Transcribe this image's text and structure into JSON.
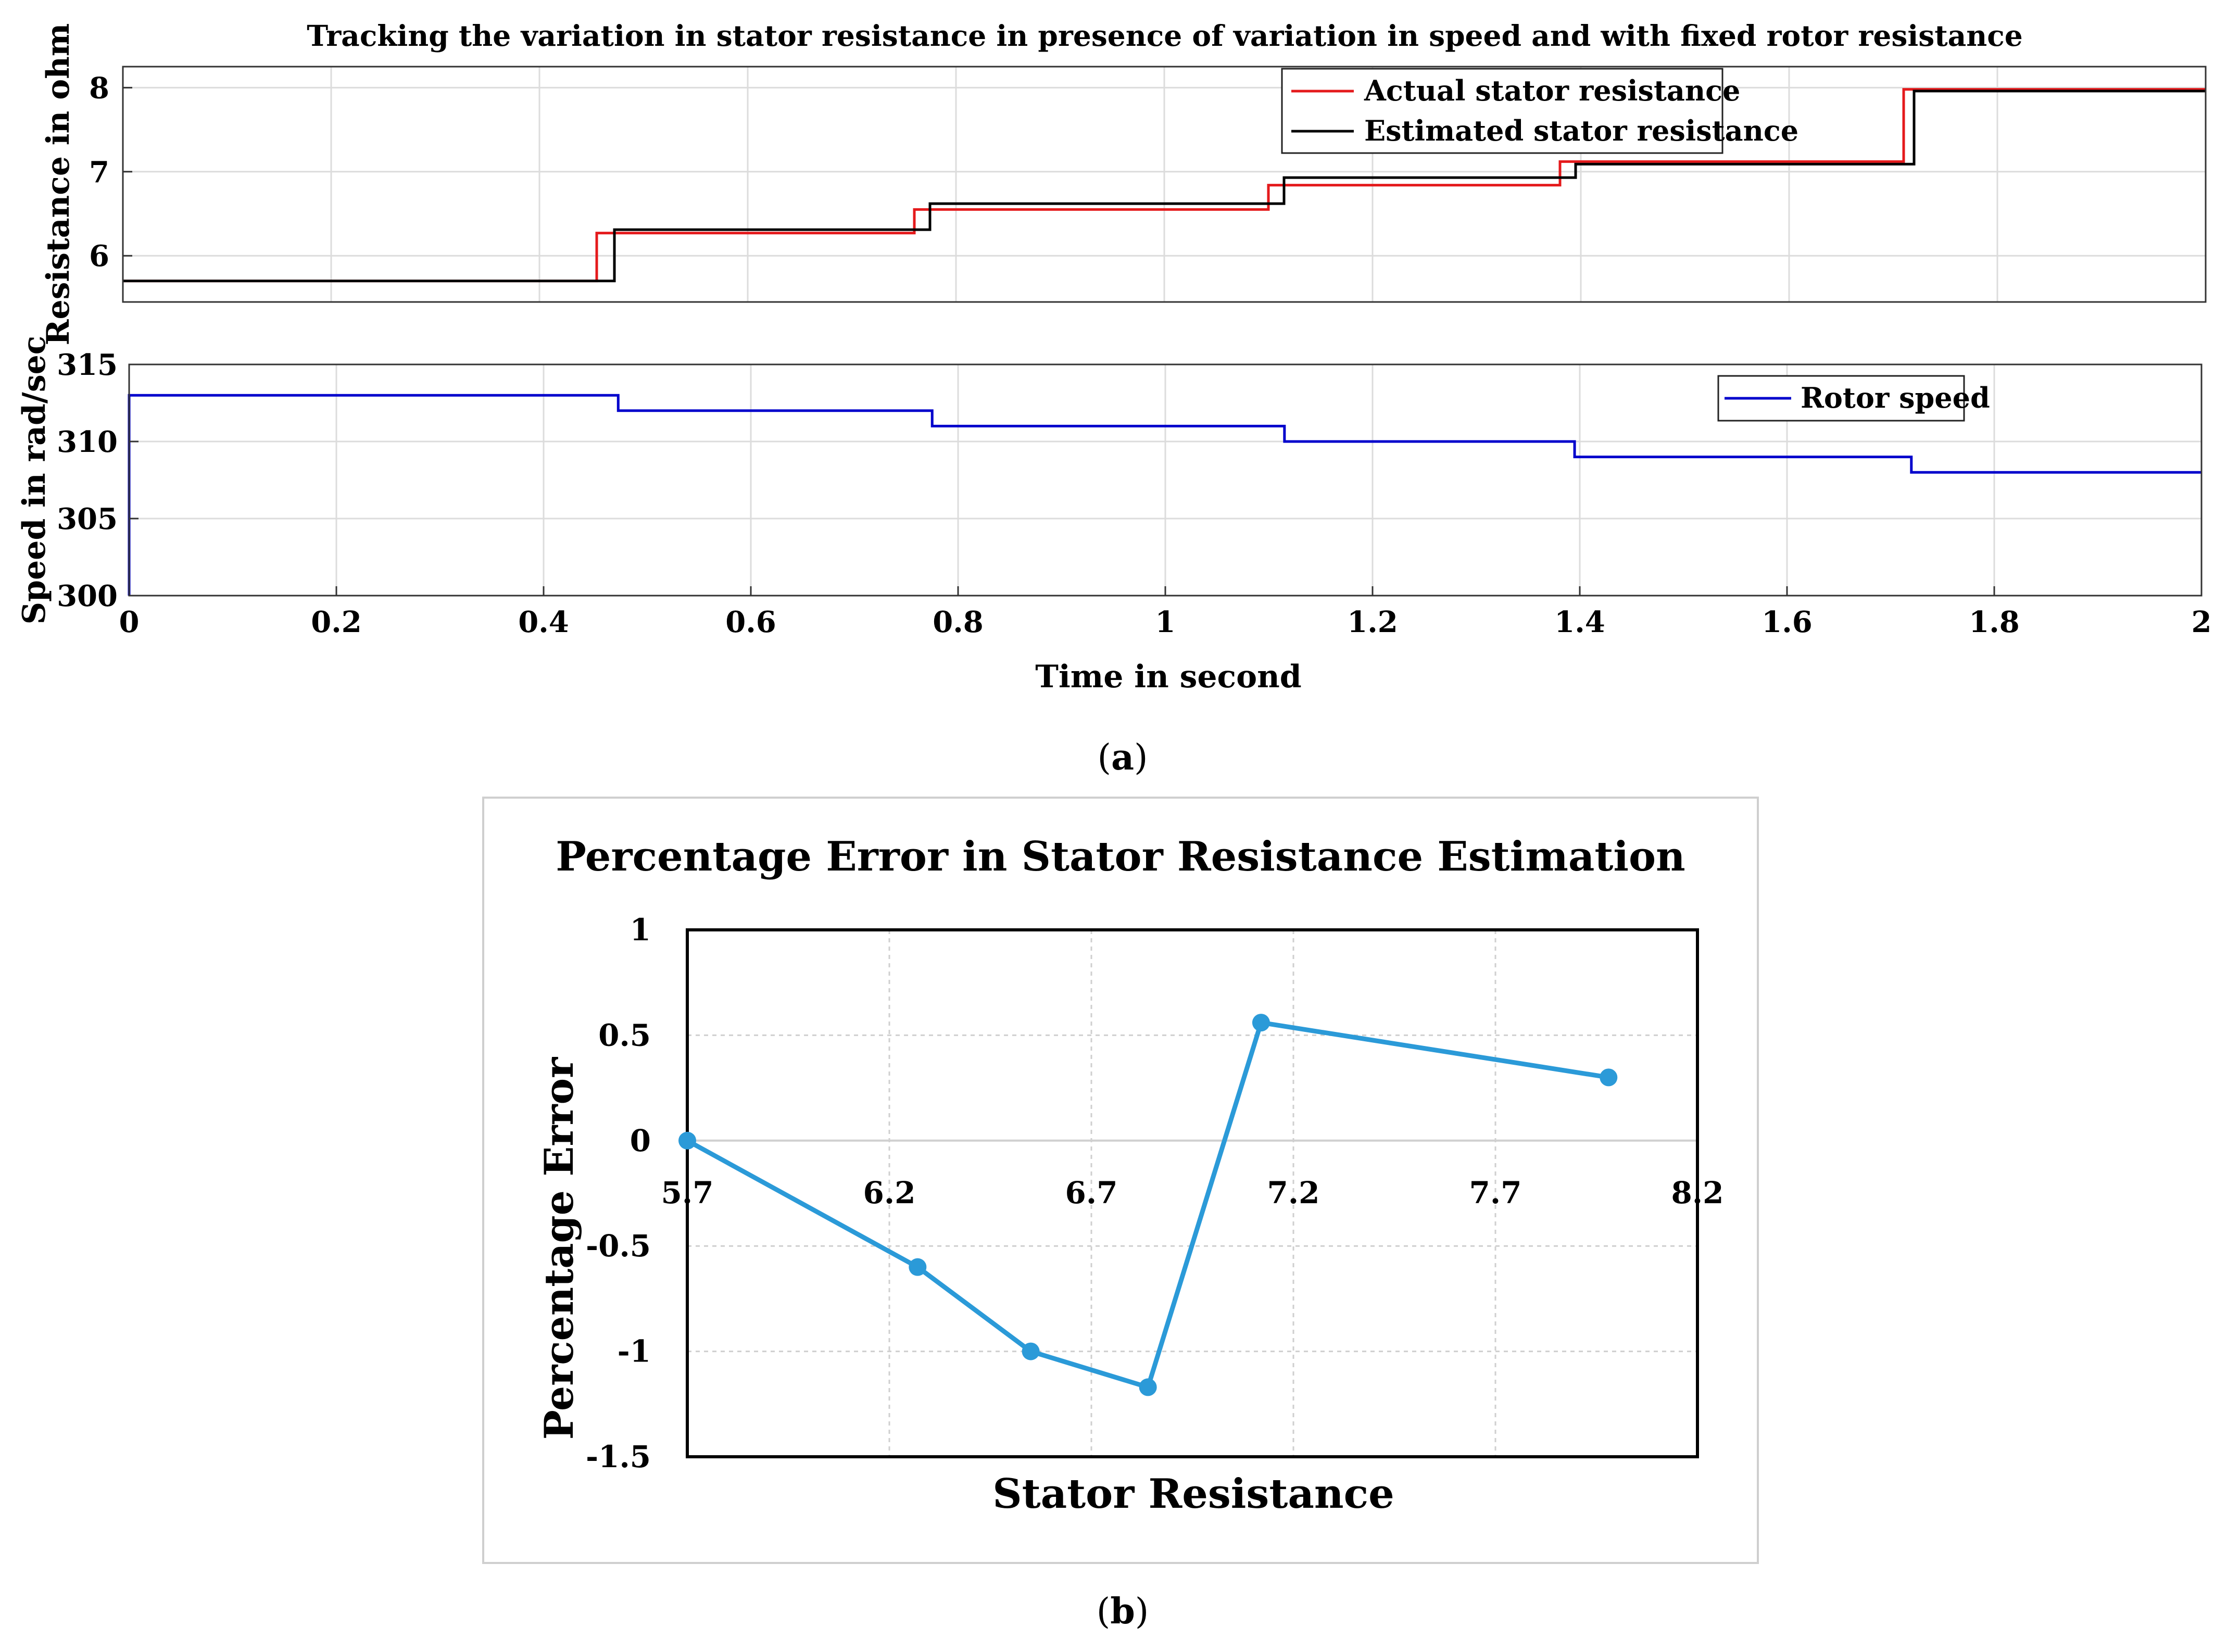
{
  "chart_data": [
    {
      "type": "line",
      "panel": "a-top",
      "title": "Tracking the variation in stator resistance in presence of variation in speed and with fixed rotor resistance",
      "xlabel": "",
      "ylabel": "Resistance in ohm",
      "xlim": [
        0,
        2
      ],
      "ylim": [
        5.45,
        8.25
      ],
      "yticks": [
        "6",
        "7",
        "8"
      ],
      "grid": true,
      "legend": "top-right",
      "series": [
        {
          "name": "Actual stator resistance",
          "color": "#e41a1c",
          "x": [
            0,
            0.455,
            0.455,
            0.76,
            0.76,
            1.1,
            1.1,
            1.38,
            1.38,
            1.71,
            1.71,
            2
          ],
          "y": [
            5.7,
            5.7,
            6.27,
            6.27,
            6.55,
            6.55,
            6.84,
            6.84,
            7.12,
            7.12,
            7.98,
            7.98
          ]
        },
        {
          "name": "Estimated stator resistance",
          "color": "#000000",
          "x": [
            0,
            0.472,
            0.472,
            0.775,
            0.775,
            1.115,
            1.115,
            1.395,
            1.395,
            1.72,
            1.72,
            2
          ],
          "y": [
            5.7,
            5.7,
            6.31,
            6.31,
            6.62,
            6.62,
            6.93,
            6.93,
            7.09,
            7.09,
            7.96,
            7.96
          ]
        }
      ]
    },
    {
      "type": "line",
      "panel": "a-bottom",
      "title": "",
      "xlabel": "Time in second",
      "ylabel": "Speed in rad/sec",
      "xlim": [
        0,
        2
      ],
      "ylim": [
        300,
        315
      ],
      "xticks": [
        "0",
        "0.2",
        "0.4",
        "0.6",
        "0.8",
        "1",
        "1.2",
        "1.4",
        "1.6",
        "1.8",
        "2"
      ],
      "yticks": [
        "300",
        "305",
        "310",
        "315"
      ],
      "grid": true,
      "legend": "top-right",
      "series": [
        {
          "name": "Rotor speed",
          "color": "#0000cc",
          "x": [
            0,
            0,
            0.472,
            0.472,
            0.775,
            0.775,
            1.115,
            1.115,
            1.395,
            1.395,
            1.72,
            1.72,
            2
          ],
          "y": [
            300,
            313,
            313,
            312,
            312,
            311,
            311,
            310,
            310,
            309,
            309,
            308,
            308
          ]
        }
      ]
    },
    {
      "type": "line",
      "panel": "b",
      "title": "Percentage Error in Stator Resistance Estimation",
      "xlabel": "Stator Resistance",
      "ylabel": "Percentage Error",
      "xlim": [
        5.7,
        8.2
      ],
      "ylim": [
        -1.5,
        1
      ],
      "xticks": [
        "5.7",
        "6.2",
        "6.7",
        "7.2",
        "7.7",
        "8.2"
      ],
      "yticks": [
        "1",
        "0.5",
        "0",
        "-0.5",
        "-1",
        "-1.5"
      ],
      "grid": true,
      "series": [
        {
          "name": "Percentage Error",
          "color": "#2b9ad8",
          "x": [
            5.7,
            6.27,
            6.55,
            6.84,
            7.12,
            7.98
          ],
          "y": [
            0,
            -0.6,
            -1.0,
            -1.17,
            0.56,
            0.3
          ]
        }
      ]
    }
  ],
  "captions": {
    "a": "a",
    "b": "b"
  }
}
